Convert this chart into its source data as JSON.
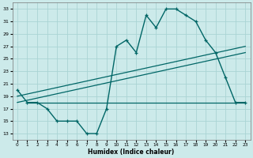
{
  "xlabel": "Humidex (Indice chaleur)",
  "bg_color": "#cceaea",
  "grid_color": "#aad4d4",
  "line_color": "#006666",
  "xlim": [
    -0.5,
    23.5
  ],
  "ylim": [
    12,
    34
  ],
  "yticks": [
    13,
    15,
    17,
    19,
    21,
    23,
    25,
    27,
    29,
    31,
    33
  ],
  "xticks": [
    0,
    1,
    2,
    3,
    4,
    5,
    6,
    7,
    8,
    9,
    10,
    11,
    12,
    13,
    14,
    15,
    16,
    17,
    18,
    19,
    20,
    21,
    22,
    23
  ],
  "curve_main": {
    "x": [
      0,
      1,
      2,
      3,
      4,
      5,
      6,
      7,
      8,
      9,
      10,
      11,
      12,
      13,
      14,
      15,
      16,
      17,
      18,
      19,
      20,
      21,
      22,
      23
    ],
    "y": [
      20,
      18,
      18,
      17,
      15,
      15,
      15,
      13,
      13,
      17,
      27,
      28,
      26,
      32,
      30,
      33,
      33,
      32,
      31,
      28,
      26,
      22,
      18,
      18
    ]
  },
  "curve_diag1": {
    "x": [
      0,
      23
    ],
    "y": [
      19,
      27
    ]
  },
  "curve_diag2": {
    "x": [
      0,
      23
    ],
    "y": [
      18,
      26
    ]
  },
  "curve_flat": {
    "x": [
      1,
      23
    ],
    "y": [
      18,
      18
    ]
  }
}
